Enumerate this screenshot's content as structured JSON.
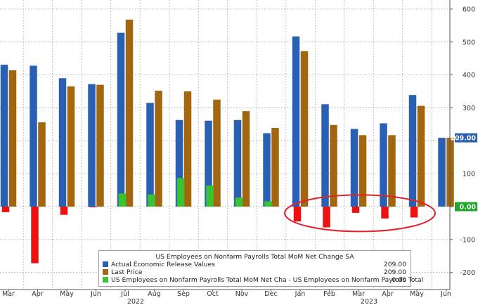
{
  "colors": {
    "actual": "#2a60b4",
    "last": "#a2660f",
    "diff_pos": "#39c332",
    "diff_neg": "#ee1111",
    "annotation": "#e0232a",
    "grid": "#9a9a9a",
    "tag_bg": "#2a60b4",
    "tag_zero_bg": "#1fa72b",
    "tag_text": "#ffffff"
  },
  "chart_data": {
    "type": "bar",
    "categories": [
      "Mar",
      "Apr",
      "May",
      "Jun",
      "Jul",
      "Aug",
      "Sep",
      "Oct",
      "Nov",
      "Dec",
      "Jan",
      "Feb",
      "Mar",
      "Apr",
      "May",
      "Jun"
    ],
    "year_labels": [
      {
        "label": "2022",
        "at_index": 4
      },
      {
        "label": "2023",
        "at_index": 12
      }
    ],
    "series": [
      {
        "name": "Actual Economic Release Values",
        "values": [
          431,
          428,
          390,
          372,
          528,
          315,
          263,
          261,
          263,
          223,
          517,
          311,
          236,
          253,
          339,
          209
        ]
      },
      {
        "name": "Last Price",
        "values": [
          414,
          256,
          365,
          370,
          568,
          352,
          350,
          325,
          290,
          239,
          472,
          248,
          217,
          217,
          306,
          209
        ]
      },
      {
        "name": "US Employees on Nonfarm Payrolls Total MoM Net Cha - US Employees on Nonfarm Payrolls Total",
        "values": [
          -17,
          -172,
          -25,
          -2,
          40,
          37,
          87,
          64,
          27,
          16,
          -45,
          -63,
          -19,
          -36,
          -33,
          0
        ]
      }
    ],
    "legend_title": "US Employees on Nonfarm Payrolls Total MoM Net Change SA",
    "legend_values": [
      "209.00",
      "209.00",
      "0.00"
    ],
    "ylim": [
      -245,
      640
    ],
    "yticks": [
      -200,
      -100,
      0,
      100,
      200,
      300,
      400,
      500,
      600
    ],
    "ytick_labels": [
      "-200",
      "-100",
      "0",
      "100",
      "200",
      "300",
      "400",
      "500",
      "600"
    ],
    "hidden_tick": 200,
    "current_value_tags": [
      {
        "value": 209,
        "label": "209.00"
      },
      {
        "value": 0,
        "label": "0.00"
      }
    ],
    "grid": true,
    "legend_position": "bottom-right",
    "annotation": {
      "type": "ellipse",
      "encloses": [
        "Jan",
        "Feb",
        "Mar",
        "Apr",
        "May"
      ]
    }
  }
}
